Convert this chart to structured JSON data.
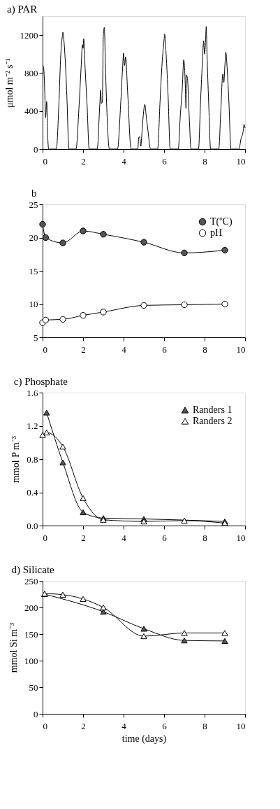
{
  "chart_data": [
    {
      "type": "line",
      "title": "a) PAR",
      "ylabel": "μmol m⁻² s⁻¹",
      "xlim": [
        0,
        10
      ],
      "xticks": [
        0,
        2,
        4,
        6,
        8,
        10
      ],
      "ylim": [
        0,
        1400
      ],
      "yticks": [
        0,
        400,
        800,
        1200
      ],
      "grid": false,
      "legend": false,
      "series": [
        {
          "color": "#000000",
          "x": [
            0,
            0.05,
            0.1,
            0.15,
            0.2,
            0.25,
            0.3,
            0.68,
            0.8,
            0.9,
            0.97,
            1.0,
            1.05,
            1.15,
            1.2,
            1.3,
            1.65,
            1.8,
            1.9,
            1.97,
            2.0,
            2.03,
            2.1,
            2.2,
            2.3,
            2.7,
            2.82,
            2.87,
            2.9,
            2.95,
            3.0,
            3.05,
            3.1,
            3.15,
            3.3,
            3.7,
            3.85,
            3.95,
            4.0,
            4.05,
            4.1,
            4.2,
            4.37,
            4.7,
            4.75,
            4.8,
            4.85,
            4.9,
            4.95,
            5.05,
            5.1,
            5.2,
            5.33,
            5.68,
            5.8,
            5.9,
            6.0,
            6.03,
            6.1,
            6.2,
            6.3,
            6.7,
            6.8,
            6.9,
            6.97,
            7.0,
            7.05,
            7.08,
            7.1,
            7.15,
            7.25,
            7.33,
            7.7,
            7.8,
            7.9,
            7.95,
            8.0,
            8.05,
            8.08,
            8.12,
            8.2,
            8.3,
            8.7,
            8.8,
            8.9,
            8.95,
            9.0,
            9.05,
            9.1,
            9.2,
            9.3,
            9.7,
            9.8,
            9.9,
            9.95,
            10.0
          ],
          "values": [
            880,
            860,
            650,
            330,
            500,
            150,
            0,
            0,
            450,
            1000,
            1180,
            1230,
            1150,
            800,
            550,
            0,
            0,
            450,
            850,
            1100,
            1060,
            1160,
            850,
            450,
            0,
            0,
            450,
            620,
            480,
            500,
            1200,
            1280,
            900,
            550,
            0,
            0,
            450,
            850,
            1010,
            880,
            970,
            600,
            0,
            0,
            120,
            130,
            30,
            150,
            300,
            470,
            380,
            200,
            0,
            0,
            500,
            900,
            1150,
            1210,
            1000,
            550,
            0,
            0,
            350,
            650,
            940,
            900,
            650,
            430,
            780,
            750,
            300,
            0,
            0,
            500,
            950,
            1140,
            1000,
            1150,
            1290,
            1000,
            500,
            0,
            0,
            400,
            790,
            700,
            870,
            1020,
            900,
            500,
            0,
            0,
            110,
            180,
            260,
            220
          ]
        }
      ]
    },
    {
      "type": "line",
      "title": "b",
      "xlim": [
        0,
        10
      ],
      "xticks": [
        0,
        2,
        4,
        6,
        8,
        10
      ],
      "ylim": [
        5,
        25
      ],
      "yticks": [
        5,
        10,
        15,
        20,
        25
      ],
      "grid": false,
      "legend": "top right",
      "marker": "circle",
      "series": [
        {
          "name": "T(ºC)",
          "color": "#555555",
          "x": [
            0,
            0.15,
            1,
            2,
            3,
            5,
            7,
            9
          ],
          "values": [
            22,
            20,
            19.2,
            21,
            20.5,
            19.3,
            17.7,
            18.1
          ]
        },
        {
          "name": "pH",
          "color": "#ffffff",
          "x": [
            0,
            0.15,
            1,
            2,
            3,
            5,
            7,
            9
          ],
          "values": [
            7.2,
            7.6,
            7.7,
            8.3,
            8.8,
            9.8,
            9.9,
            10
          ]
        }
      ]
    },
    {
      "type": "line",
      "title": "c) Phosphate",
      "ylabel": "mmol P m⁻³",
      "xlim": [
        0,
        10
      ],
      "xticks": [
        0,
        2,
        4,
        6,
        8,
        10
      ],
      "ylim": [
        0,
        1.6
      ],
      "yticks": [
        {
          "value": 0,
          "label": "0.0"
        },
        0.4,
        0.8,
        1.2,
        1.6
      ],
      "grid": false,
      "legend": "top right",
      "marker": "triangle",
      "series": [
        {
          "name": "Randers 1",
          "color": "#555555",
          "x": [
            0.2,
            1,
            2,
            3,
            5,
            9
          ],
          "values": [
            1.36,
            0.76,
            0.16,
            0.09,
            0.08,
            0.05
          ]
        },
        {
          "name": "Randers 2",
          "color": "#ffffff",
          "x": [
            0,
            0.2,
            1,
            2,
            3,
            5,
            7,
            9
          ],
          "values": [
            1.09,
            1.12,
            0.95,
            0.33,
            0.07,
            0.05,
            0.06,
            0.03
          ]
        }
      ]
    },
    {
      "type": "line",
      "title": "d) Silicate",
      "xlabel": "time (days)",
      "ylabel": "mmol Si m⁻³",
      "xlim": [
        0,
        10
      ],
      "xticks": [
        0,
        2,
        4,
        6,
        8,
        10
      ],
      "ylim": [
        0,
        250
      ],
      "yticks": [
        0,
        50,
        100,
        150,
        200,
        250
      ],
      "grid": false,
      "legend": false,
      "marker": "triangle",
      "series": [
        {
          "color": "#555555",
          "x": [
            0.1,
            3,
            5,
            7,
            9
          ],
          "values": [
            225,
            192,
            160,
            138,
            137
          ]
        },
        {
          "color": "#ffffff",
          "x": [
            0.1,
            1,
            2,
            3,
            5,
            7,
            9
          ],
          "values": [
            226,
            224,
            216,
            200,
            146,
            152,
            152
          ]
        }
      ]
    }
  ]
}
